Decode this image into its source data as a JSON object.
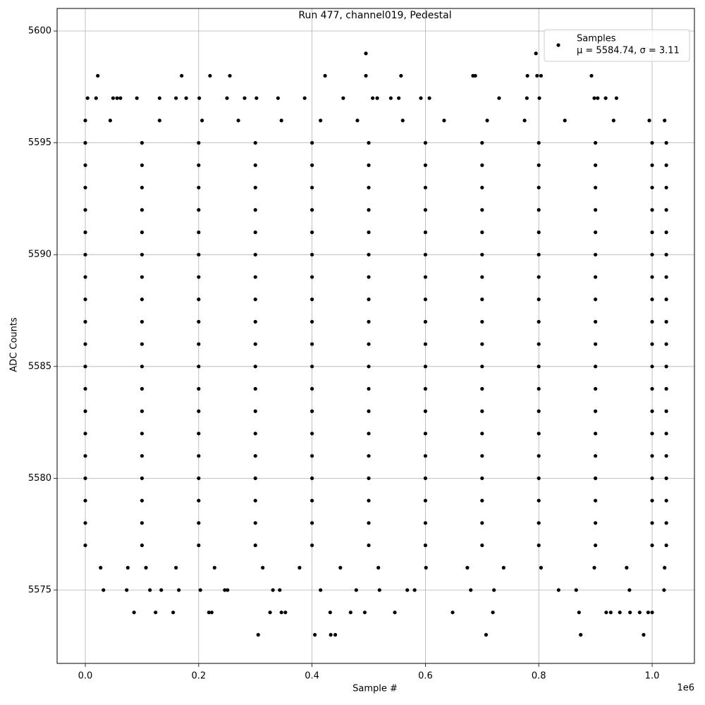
{
  "chart_data": {
    "type": "scatter",
    "title": "Run 477, channel019, Pedestal",
    "xlabel": "Sample #",
    "ylabel": "ADC Counts",
    "x_offset_label": "1e6",
    "xlim": [
      -49750,
      1074600
    ],
    "ylim": [
      5571.72,
      5601.01
    ],
    "xticks": [
      {
        "value": 0,
        "label": "0.0"
      },
      {
        "value": 200000,
        "label": "0.2"
      },
      {
        "value": 400000,
        "label": "0.4"
      },
      {
        "value": 600000,
        "label": "0.6"
      },
      {
        "value": 800000,
        "label": "0.8"
      },
      {
        "value": 1000000,
        "label": "1.0"
      }
    ],
    "yticks": [
      5575,
      5580,
      5585,
      5590,
      5595,
      5600
    ],
    "grid": true,
    "legend_loc": "upper right",
    "series": [
      {
        "name": "Samples",
        "stats": "μ = 5584.74, σ = 3.11",
        "color": "#000000",
        "x": [
          0,
          100000,
          200000,
          300000,
          400000,
          500000,
          600000,
          700000,
          800000,
          900000,
          1000000,
          1025000,
          0,
          100000,
          200000,
          300000,
          400000,
          500000,
          600000,
          700000,
          800000,
          900000,
          1000000,
          1025000,
          0,
          100000,
          200000,
          300000,
          400000,
          500000,
          600000,
          700000,
          800000,
          900000,
          1000000,
          1025000,
          0,
          100000,
          200000,
          300000,
          400000,
          500000,
          600000,
          700000,
          800000,
          900000,
          1000000,
          1025000,
          0,
          100000,
          200000,
          300000,
          400000,
          500000,
          600000,
          700000,
          800000,
          900000,
          1000000,
          1025000,
          0,
          100000,
          200000,
          300000,
          400000,
          500000,
          600000,
          700000,
          800000,
          900000,
          1000000,
          1025000,
          0,
          100000,
          200000,
          300000,
          400000,
          500000,
          600000,
          700000,
          800000,
          900000,
          1000000,
          1025000,
          0,
          100000,
          200000,
          300000,
          400000,
          500000,
          600000,
          700000,
          800000,
          900000,
          1000000,
          1025000,
          0,
          100000,
          200000,
          300000,
          400000,
          500000,
          600000,
          700000,
          800000,
          900000,
          1000000,
          1025000,
          0,
          100000,
          200000,
          300000,
          400000,
          500000,
          600000,
          700000,
          800000,
          900000,
          1000000,
          1025000,
          0,
          100000,
          200000,
          300000,
          400000,
          500000,
          600000,
          700000,
          800000,
          900000,
          1000000,
          1025000,
          0,
          100000,
          200000,
          300000,
          400000,
          500000,
          600000,
          700000,
          800000,
          900000,
          1000000,
          1025000,
          0,
          100000,
          200000,
          300000,
          400000,
          500000,
          600000,
          700000,
          800000,
          900000,
          1000000,
          1025000,
          0,
          100000,
          200000,
          300000,
          400000,
          500000,
          600000,
          700000,
          800000,
          900000,
          1000000,
          1025000,
          0,
          100000,
          200000,
          300000,
          400000,
          500000,
          600000,
          700000,
          800000,
          900000,
          1000000,
          1025000,
          0,
          100000,
          200000,
          300000,
          400000,
          500000,
          600000,
          700000,
          800000,
          900000,
          1000000,
          1025000,
          0,
          100000,
          200000,
          300000,
          400000,
          500000,
          600000,
          700000,
          800000,
          900000,
          1000000,
          1025000,
          0,
          100000,
          200000,
          300000,
          400000,
          500000,
          600000,
          700000,
          800000,
          900000,
          1000000,
          1025000,
          0,
          100000,
          200000,
          300000,
          400000,
          500000,
          600000,
          700000,
          800000,
          900000,
          1000000,
          1025000,
          0,
          44000,
          131000,
          206000,
          270000,
          346000,
          415000,
          480000,
          560000,
          633000,
          709000,
          775000,
          846000,
          932000,
          995000,
          1022000,
          27000,
          75000,
          107000,
          160000,
          228000,
          313000,
          378000,
          450000,
          517000,
          601000,
          674000,
          738000,
          804000,
          898000,
          955000,
          1022000,
          4000,
          19000,
          49000,
          56000,
          62000,
          91000,
          131000,
          160000,
          178000,
          201000,
          250000,
          281000,
          302000,
          340000,
          387000,
          455000,
          507000,
          515000,
          539000,
          553000,
          592000,
          607000,
          730000,
          779000,
          801000,
          898000,
          904000,
          918000,
          937000,
          22000,
          170000,
          220000,
          255000,
          423000,
          495000,
          557000,
          684000,
          688000,
          780000,
          797000,
          804000,
          893000,
          495000,
          795000,
          86000,
          124000,
          155000,
          218000,
          223000,
          326000,
          346000,
          353000,
          432000,
          468000,
          493000,
          546000,
          648000,
          719000,
          871000,
          919000,
          927000,
          943000,
          961000,
          978000,
          993000,
          1000000,
          305000,
          405000,
          433000,
          441000,
          707000,
          874000,
          985000,
          32000,
          73000,
          114000,
          134000,
          165000,
          203000,
          246000,
          251000,
          331000,
          343000,
          415000,
          478000,
          519000,
          568000,
          581000,
          680000,
          721000,
          835000,
          866000,
          960000,
          1021000
        ],
        "y": [
          5595,
          5595,
          5595,
          5595,
          5595,
          5595,
          5595,
          5595,
          5595,
          5595,
          5595,
          5595,
          5594,
          5594,
          5594,
          5594,
          5594,
          5594,
          5594,
          5594,
          5594,
          5594,
          5594,
          5594,
          5593,
          5593,
          5593,
          5593,
          5593,
          5593,
          5593,
          5593,
          5593,
          5593,
          5593,
          5593,
          5592,
          5592,
          5592,
          5592,
          5592,
          5592,
          5592,
          5592,
          5592,
          5592,
          5592,
          5592,
          5591,
          5591,
          5591,
          5591,
          5591,
          5591,
          5591,
          5591,
          5591,
          5591,
          5591,
          5591,
          5590,
          5590,
          5590,
          5590,
          5590,
          5590,
          5590,
          5590,
          5590,
          5590,
          5590,
          5590,
          5589,
          5589,
          5589,
          5589,
          5589,
          5589,
          5589,
          5589,
          5589,
          5589,
          5589,
          5589,
          5588,
          5588,
          5588,
          5588,
          5588,
          5588,
          5588,
          5588,
          5588,
          5588,
          5588,
          5588,
          5587,
          5587,
          5587,
          5587,
          5587,
          5587,
          5587,
          5587,
          5587,
          5587,
          5587,
          5587,
          5586,
          5586,
          5586,
          5586,
          5586,
          5586,
          5586,
          5586,
          5586,
          5586,
          5586,
          5586,
          5585,
          5585,
          5585,
          5585,
          5585,
          5585,
          5585,
          5585,
          5585,
          5585,
          5585,
          5585,
          5584,
          5584,
          5584,
          5584,
          5584,
          5584,
          5584,
          5584,
          5584,
          5584,
          5584,
          5584,
          5583,
          5583,
          5583,
          5583,
          5583,
          5583,
          5583,
          5583,
          5583,
          5583,
          5583,
          5583,
          5582,
          5582,
          5582,
          5582,
          5582,
          5582,
          5582,
          5582,
          5582,
          5582,
          5582,
          5582,
          5581,
          5581,
          5581,
          5581,
          5581,
          5581,
          5581,
          5581,
          5581,
          5581,
          5581,
          5581,
          5580,
          5580,
          5580,
          5580,
          5580,
          5580,
          5580,
          5580,
          5580,
          5580,
          5580,
          5580,
          5579,
          5579,
          5579,
          5579,
          5579,
          5579,
          5579,
          5579,
          5579,
          5579,
          5579,
          5579,
          5578,
          5578,
          5578,
          5578,
          5578,
          5578,
          5578,
          5578,
          5578,
          5578,
          5578,
          5578,
          5577,
          5577,
          5577,
          5577,
          5577,
          5577,
          5577,
          5577,
          5577,
          5577,
          5577,
          5577,
          5596,
          5596,
          5596,
          5596,
          5596,
          5596,
          5596,
          5596,
          5596,
          5596,
          5596,
          5596,
          5596,
          5596,
          5596,
          5596,
          5576,
          5576,
          5576,
          5576,
          5576,
          5576,
          5576,
          5576,
          5576,
          5576,
          5576,
          5576,
          5576,
          5576,
          5576,
          5576,
          5597,
          5597,
          5597,
          5597,
          5597,
          5597,
          5597,
          5597,
          5597,
          5597,
          5597,
          5597,
          5597,
          5597,
          5597,
          5597,
          5597,
          5597,
          5597,
          5597,
          5597,
          5597,
          5597,
          5597,
          5597,
          5597,
          5597,
          5597,
          5597,
          5598,
          5598,
          5598,
          5598,
          5598,
          5598,
          5598,
          5598,
          5598,
          5598,
          5598,
          5598,
          5598,
          5599,
          5599,
          5574,
          5574,
          5574,
          5574,
          5574,
          5574,
          5574,
          5574,
          5574,
          5574,
          5574,
          5574,
          5574,
          5574,
          5574,
          5574,
          5574,
          5574,
          5574,
          5574,
          5574,
          5574,
          5573,
          5573,
          5573,
          5573,
          5573,
          5573,
          5573,
          5575,
          5575,
          5575,
          5575,
          5575,
          5575,
          5575,
          5575,
          5575,
          5575,
          5575,
          5575,
          5575,
          5575,
          5575,
          5575,
          5575,
          5575,
          5575,
          5575,
          5575
        ]
      }
    ]
  }
}
